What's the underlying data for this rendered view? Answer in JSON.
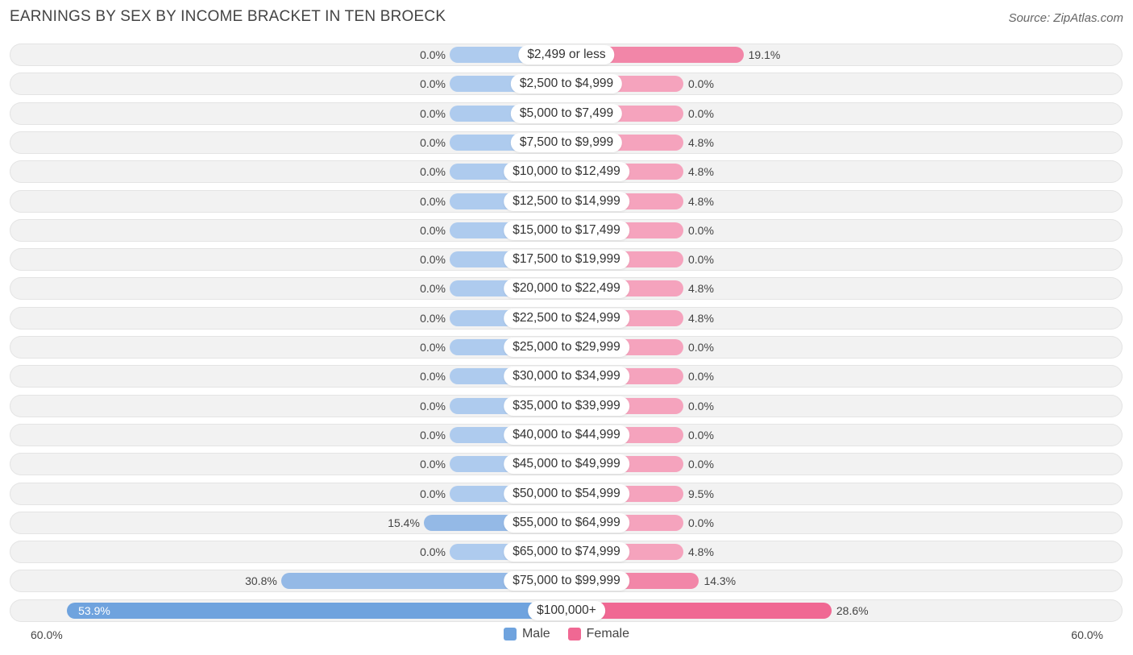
{
  "header": {
    "title": "EARNINGS BY SEX BY INCOME BRACKET IN TEN BROECK",
    "source": "Source: ZipAtlas.com"
  },
  "colors": {
    "male": "#6fa3de",
    "male_light": "#aecbee",
    "female": "#f06893",
    "female_light": "#f5a3bd"
  },
  "chart_data": {
    "type": "bar",
    "orientation": "horizontal-diverging",
    "title": "EARNINGS BY SEX BY INCOME BRACKET IN TEN BROECK",
    "categories": [
      "$2,499 or less",
      "$2,500 to $4,999",
      "$5,000 to $7,499",
      "$7,500 to $9,999",
      "$10,000 to $12,499",
      "$12,500 to $14,999",
      "$15,000 to $17,499",
      "$17,500 to $19,999",
      "$20,000 to $22,499",
      "$22,500 to $24,999",
      "$25,000 to $29,999",
      "$30,000 to $34,999",
      "$35,000 to $39,999",
      "$40,000 to $44,999",
      "$45,000 to $49,999",
      "$50,000 to $54,999",
      "$55,000 to $64,999",
      "$65,000 to $74,999",
      "$75,000 to $99,999",
      "$100,000+"
    ],
    "series": [
      {
        "name": "Male",
        "values": [
          0.0,
          0.0,
          0.0,
          0.0,
          0.0,
          0.0,
          0.0,
          0.0,
          0.0,
          0.0,
          0.0,
          0.0,
          0.0,
          0.0,
          0.0,
          0.0,
          15.4,
          0.0,
          30.8,
          53.9
        ],
        "labels": [
          "0.0%",
          "0.0%",
          "0.0%",
          "0.0%",
          "0.0%",
          "0.0%",
          "0.0%",
          "0.0%",
          "0.0%",
          "0.0%",
          "0.0%",
          "0.0%",
          "0.0%",
          "0.0%",
          "0.0%",
          "0.0%",
          "15.4%",
          "0.0%",
          "30.8%",
          "53.9%"
        ]
      },
      {
        "name": "Female",
        "values": [
          19.1,
          0.0,
          0.0,
          4.8,
          4.8,
          4.8,
          0.0,
          0.0,
          4.8,
          4.8,
          0.0,
          0.0,
          0.0,
          0.0,
          0.0,
          9.5,
          0.0,
          4.8,
          14.3,
          28.6
        ],
        "labels": [
          "19.1%",
          "0.0%",
          "0.0%",
          "4.8%",
          "4.8%",
          "4.8%",
          "0.0%",
          "0.0%",
          "4.8%",
          "4.8%",
          "0.0%",
          "0.0%",
          "0.0%",
          "0.0%",
          "0.0%",
          "9.5%",
          "0.0%",
          "4.8%",
          "14.3%",
          "28.6%"
        ]
      }
    ],
    "xlim": [
      -60,
      60
    ],
    "axis_left_label": "60.0%",
    "axis_right_label": "60.0%",
    "legend": [
      "Male",
      "Female"
    ],
    "legend_position": "bottom-center"
  }
}
